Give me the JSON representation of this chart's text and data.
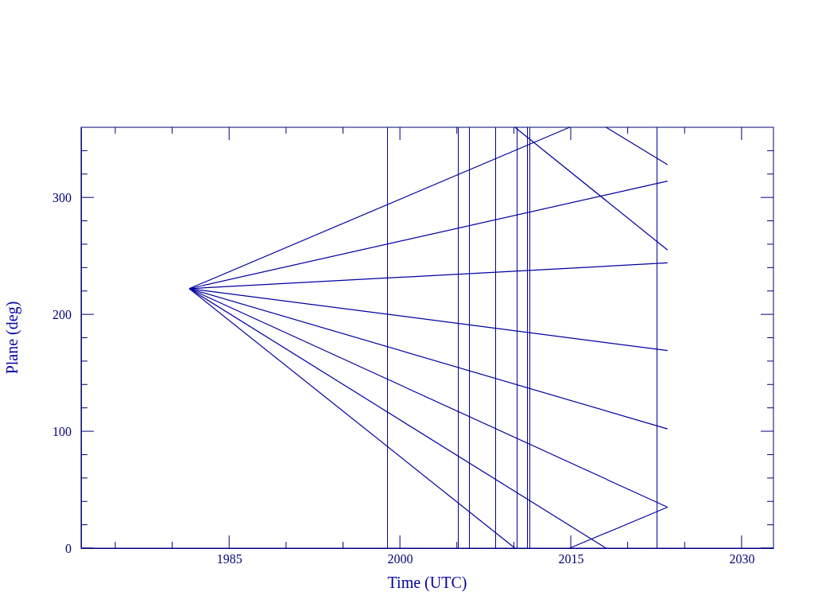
{
  "chart_data": {
    "type": "line",
    "xlabel": "Time (UTC)",
    "ylabel": "Plane (deg)",
    "xlim": [
      1972,
      2032.8
    ],
    "ylim": [
      0,
      360
    ],
    "xticks": [
      {
        "value": 1975,
        "label": null
      },
      {
        "value": 1980,
        "label": null
      },
      1985,
      {
        "value": 1990,
        "label": null
      },
      {
        "value": 1995,
        "label": null
      },
      2000,
      {
        "value": 2005,
        "label": null
      },
      {
        "value": 2010,
        "label": null
      },
      2015,
      {
        "value": 2020,
        "label": null
      },
      {
        "value": 2025,
        "label": null
      },
      2030
    ],
    "yticks": [
      0,
      {
        "value": 20,
        "label": null
      },
      {
        "value": 40,
        "label": null
      },
      {
        "value": 60,
        "label": null
      },
      {
        "value": 80,
        "label": null
      },
      100,
      {
        "value": 120,
        "label": null
      },
      {
        "value": 140,
        "label": null
      },
      {
        "value": 160,
        "label": null
      },
      {
        "value": 180,
        "label": null
      },
      200,
      {
        "value": 220,
        "label": null
      },
      {
        "value": 240,
        "label": null
      },
      {
        "value": 260,
        "label": null
      },
      {
        "value": 280,
        "label": null
      },
      300,
      {
        "value": 320,
        "label": null
      },
      {
        "value": 340,
        "label": null
      }
    ],
    "grid": false,
    "marker": "none",
    "line_style": "solid",
    "series": [
      {
        "color": "#0000a0",
        "x": [
          1981.5,
          2014.9
        ],
        "values": [
          222,
          360
        ]
      },
      {
        "color": "#0000a0",
        "x": [
          2014.9,
          2023.5
        ],
        "values": [
          0,
          35
        ]
      },
      {
        "color": "#0000a0",
        "x": [
          1981.5,
          2023.5
        ],
        "values": [
          222,
          314
        ]
      },
      {
        "color": "#0000a0",
        "x": [
          1981.5,
          2023.5
        ],
        "values": [
          222,
          244
        ]
      },
      {
        "color": "#0000a0",
        "x": [
          1981.5,
          2023.5
        ],
        "values": [
          222,
          169
        ]
      },
      {
        "color": "#0000a0",
        "x": [
          1981.5,
          2023.5
        ],
        "values": [
          222,
          102
        ]
      },
      {
        "color": "#0000a0",
        "x": [
          1981.5,
          2023.5
        ],
        "values": [
          222,
          35
        ]
      },
      {
        "color": "#0000a0",
        "x": [
          1981.5,
          2018.1
        ],
        "values": [
          222,
          0
        ]
      },
      {
        "color": "#0000a0",
        "x": [
          2018.1,
          2023.5
        ],
        "values": [
          360,
          328
        ]
      },
      {
        "color": "#0000a0",
        "x": [
          1981.5,
          2010.1
        ],
        "values": [
          222,
          0
        ]
      },
      {
        "color": "#0000a0",
        "x": [
          2010.1,
          2023.5
        ],
        "values": [
          360,
          255
        ]
      }
    ],
    "ref_lines": [
      {
        "axis": "x",
        "value": 1998.9,
        "color": "#0000a0"
      },
      {
        "axis": "x",
        "value": 2005.1,
        "color": "#0000a0"
      },
      {
        "axis": "x",
        "value": 2006.1,
        "color": "#0000a0"
      },
      {
        "axis": "x",
        "value": 2008.4,
        "color": "#0000a0"
      },
      {
        "axis": "x",
        "value": 2010.3,
        "color": "#0000a0"
      },
      {
        "axis": "x",
        "value": 2011.2,
        "color": "#0000a0"
      },
      {
        "axis": "x",
        "value": 2011.4,
        "color": "#0000a0"
      },
      {
        "axis": "x",
        "value": 2022.6,
        "color": "#0000a0"
      }
    ]
  }
}
